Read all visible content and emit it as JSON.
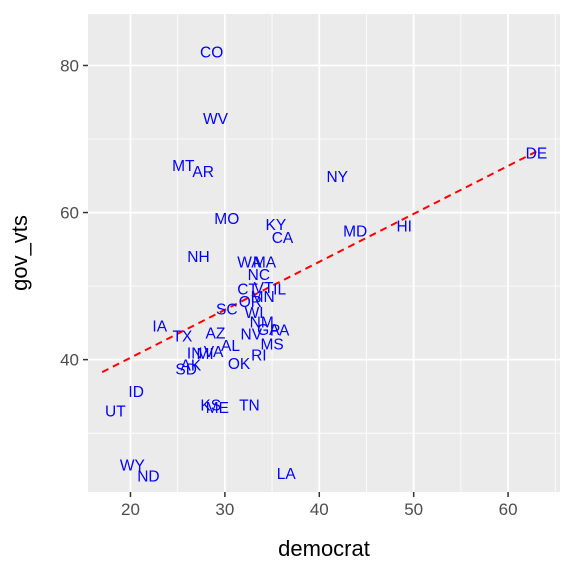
{
  "chart_data": {
    "type": "scatter",
    "xlabel": "democrat",
    "ylabel": "gov_vts",
    "xlim": [
      15.5,
      65.5
    ],
    "ylim": [
      22,
      87
    ],
    "x_ticks": [
      20,
      30,
      40,
      50,
      60
    ],
    "x_tick_labels": [
      "20",
      "30",
      "40",
      "50",
      "60"
    ],
    "y_ticks": [
      40,
      60,
      80
    ],
    "y_tick_labels": [
      "40",
      "60",
      "80"
    ],
    "grid": true,
    "point_color": "#0000FF",
    "fit_line": {
      "style": "dashed",
      "color": "#FF0000",
      "points": [
        [
          17.0,
          38.3
        ],
        [
          63.0,
          68.3
        ]
      ]
    },
    "points": [
      {
        "label": "CO",
        "x": 28.6,
        "y": 81.8
      },
      {
        "label": "WV",
        "x": 29.0,
        "y": 72.8
      },
      {
        "label": "MT",
        "x": 25.6,
        "y": 66.4
      },
      {
        "label": "AR",
        "x": 27.7,
        "y": 65.6
      },
      {
        "label": "NY",
        "x": 41.9,
        "y": 64.9
      },
      {
        "label": "DE",
        "x": 63.0,
        "y": 68.1
      },
      {
        "label": "MO",
        "x": 30.2,
        "y": 59.2
      },
      {
        "label": "KY",
        "x": 35.4,
        "y": 58.4
      },
      {
        "label": "CA",
        "x": 36.1,
        "y": 56.6
      },
      {
        "label": "MD",
        "x": 43.8,
        "y": 57.5
      },
      {
        "label": "HI",
        "x": 49.0,
        "y": 58.2
      },
      {
        "label": "NH",
        "x": 27.2,
        "y": 54.0
      },
      {
        "label": "WA",
        "x": 32.6,
        "y": 53.3
      },
      {
        "label": "MA",
        "x": 34.2,
        "y": 53.3
      },
      {
        "label": "NC",
        "x": 33.6,
        "y": 51.6
      },
      {
        "label": "CT",
        "x": 32.4,
        "y": 49.6
      },
      {
        "label": "VT",
        "x": 34.1,
        "y": 49.8
      },
      {
        "label": "IL",
        "x": 35.8,
        "y": 49.6
      },
      {
        "label": "MN",
        "x": 34.0,
        "y": 48.6
      },
      {
        "label": "OR",
        "x": 32.7,
        "y": 47.9
      },
      {
        "label": "SC",
        "x": 30.2,
        "y": 46.9
      },
      {
        "label": "WI",
        "x": 33.1,
        "y": 46.4
      },
      {
        "label": "NM",
        "x": 33.9,
        "y": 45.1
      },
      {
        "label": "PA",
        "x": 35.8,
        "y": 44.0
      },
      {
        "label": "IA",
        "x": 23.1,
        "y": 44.6
      },
      {
        "label": "TX",
        "x": 25.5,
        "y": 43.2
      },
      {
        "label": "AZ",
        "x": 29.0,
        "y": 43.6
      },
      {
        "label": "NV",
        "x": 32.8,
        "y": 43.5
      },
      {
        "label": "GA",
        "x": 34.6,
        "y": 44.1
      },
      {
        "label": "AL",
        "x": 30.6,
        "y": 41.9
      },
      {
        "label": "MS",
        "x": 35.0,
        "y": 42.1
      },
      {
        "label": "IN",
        "x": 26.8,
        "y": 40.9
      },
      {
        "label": "MI",
        "x": 27.9,
        "y": 40.8
      },
      {
        "label": "VA",
        "x": 28.8,
        "y": 41.1
      },
      {
        "label": "RI",
        "x": 33.6,
        "y": 40.6
      },
      {
        "label": "OK",
        "x": 31.5,
        "y": 39.5
      },
      {
        "label": "AK",
        "x": 26.4,
        "y": 39.3
      },
      {
        "label": "SD",
        "x": 25.9,
        "y": 38.7
      },
      {
        "label": "ID",
        "x": 20.6,
        "y": 35.7
      },
      {
        "label": "UT",
        "x": 18.4,
        "y": 33.0
      },
      {
        "label": "KS",
        "x": 28.5,
        "y": 33.8
      },
      {
        "label": "ME",
        "x": 29.2,
        "y": 33.5
      },
      {
        "label": "TN",
        "x": 32.6,
        "y": 33.8
      },
      {
        "label": "WY",
        "x": 20.2,
        "y": 25.7
      },
      {
        "label": "ND",
        "x": 21.9,
        "y": 24.2
      },
      {
        "label": "LA",
        "x": 36.5,
        "y": 24.5
      }
    ]
  }
}
